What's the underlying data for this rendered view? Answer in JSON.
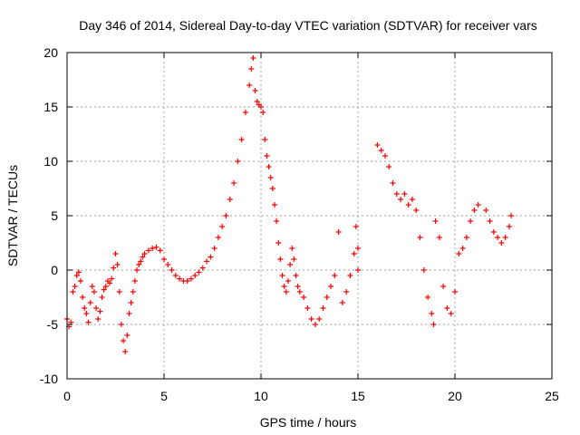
{
  "chart_data": {
    "type": "scatter",
    "title": "Day 346 of 2014, Sidereal Day-to-day VTEC variation (SDTVAR) for receiver vars",
    "xlabel": "GPS time / hours",
    "ylabel": "SDTVAR / TECUs",
    "xlim": [
      0,
      25
    ],
    "ylim": [
      -10,
      20
    ],
    "x_ticks": [
      "0",
      "5",
      "10",
      "15",
      "20",
      "25"
    ],
    "y_ticks": [
      "-10",
      "-5",
      "0",
      "5",
      "10",
      "15",
      "20"
    ],
    "grid": true,
    "marker": "plus",
    "color": "#ff0000",
    "series": [
      {
        "name": "vars",
        "points": [
          [
            0.0,
            -4.5
          ],
          [
            0.1,
            -5.2
          ],
          [
            0.2,
            -4.8
          ],
          [
            0.3,
            -2.0
          ],
          [
            0.4,
            -1.5
          ],
          [
            0.5,
            -0.5
          ],
          [
            0.6,
            -0.2
          ],
          [
            0.7,
            -1.0
          ],
          [
            0.8,
            -2.5
          ],
          [
            0.9,
            -3.5
          ],
          [
            1.0,
            -4.0
          ],
          [
            1.1,
            -4.8
          ],
          [
            1.2,
            -3.0
          ],
          [
            1.3,
            -1.5
          ],
          [
            1.4,
            -2.0
          ],
          [
            1.5,
            -3.5
          ],
          [
            1.6,
            -4.5
          ],
          [
            1.7,
            -3.8
          ],
          [
            1.8,
            -2.5
          ],
          [
            1.9,
            -1.8
          ],
          [
            2.0,
            -1.5
          ],
          [
            2.1,
            -1.0
          ],
          [
            2.2,
            -1.2
          ],
          [
            2.3,
            -0.8
          ],
          [
            2.4,
            0.2
          ],
          [
            2.5,
            1.5
          ],
          [
            2.6,
            0.5
          ],
          [
            2.7,
            -2.0
          ],
          [
            2.8,
            -5.0
          ],
          [
            2.9,
            -6.5
          ],
          [
            3.0,
            -7.5
          ],
          [
            3.1,
            -6.0
          ],
          [
            3.2,
            -4.0
          ],
          [
            3.3,
            -3.0
          ],
          [
            3.4,
            -2.0
          ],
          [
            3.5,
            -1.0
          ],
          [
            3.6,
            0.0
          ],
          [
            3.7,
            0.5
          ],
          [
            3.8,
            0.8
          ],
          [
            3.9,
            1.2
          ],
          [
            4.0,
            1.5
          ],
          [
            4.2,
            1.8
          ],
          [
            4.4,
            2.0
          ],
          [
            4.6,
            2.1
          ],
          [
            4.8,
            1.8
          ],
          [
            5.0,
            1.0
          ],
          [
            5.2,
            0.5
          ],
          [
            5.4,
            0.0
          ],
          [
            5.6,
            -0.5
          ],
          [
            5.8,
            -0.8
          ],
          [
            6.0,
            -1.0
          ],
          [
            6.2,
            -1.0
          ],
          [
            6.4,
            -0.8
          ],
          [
            6.6,
            -0.5
          ],
          [
            6.8,
            -0.2
          ],
          [
            7.0,
            0.2
          ],
          [
            7.2,
            0.8
          ],
          [
            7.4,
            1.2
          ],
          [
            7.6,
            2.0
          ],
          [
            7.8,
            3.0
          ],
          [
            8.0,
            4.0
          ],
          [
            8.2,
            5.0
          ],
          [
            8.4,
            6.5
          ],
          [
            8.6,
            8.0
          ],
          [
            8.8,
            10.0
          ],
          [
            9.0,
            12.0
          ],
          [
            9.2,
            14.5
          ],
          [
            9.4,
            17.0
          ],
          [
            9.5,
            18.5
          ],
          [
            9.6,
            19.5
          ],
          [
            9.7,
            16.5
          ],
          [
            9.8,
            15.5
          ],
          [
            9.9,
            15.2
          ],
          [
            10.0,
            15.0
          ],
          [
            10.1,
            14.5
          ],
          [
            10.2,
            12.0
          ],
          [
            10.3,
            10.5
          ],
          [
            10.4,
            9.5
          ],
          [
            10.5,
            8.5
          ],
          [
            10.6,
            7.5
          ],
          [
            10.7,
            6.0
          ],
          [
            10.8,
            4.5
          ],
          [
            10.9,
            2.5
          ],
          [
            11.0,
            1.0
          ],
          [
            11.1,
            -0.5
          ],
          [
            11.2,
            -1.5
          ],
          [
            11.3,
            -2.0
          ],
          [
            11.4,
            -1.0
          ],
          [
            11.5,
            0.5
          ],
          [
            11.6,
            2.0
          ],
          [
            11.7,
            1.0
          ],
          [
            11.8,
            -0.5
          ],
          [
            11.9,
            -1.5
          ],
          [
            12.0,
            -2.0
          ],
          [
            12.2,
            -2.5
          ],
          [
            12.4,
            -3.5
          ],
          [
            12.6,
            -4.5
          ],
          [
            12.8,
            -5.0
          ],
          [
            13.0,
            -4.5
          ],
          [
            13.2,
            -3.5
          ],
          [
            13.4,
            -2.5
          ],
          [
            13.6,
            -1.5
          ],
          [
            13.8,
            -0.5
          ],
          [
            14.0,
            3.5
          ],
          [
            14.2,
            -3.0
          ],
          [
            14.4,
            -2.0
          ],
          [
            14.6,
            -0.5
          ],
          [
            14.8,
            1.5
          ],
          [
            14.9,
            4.0
          ],
          [
            15.0,
            2.0
          ],
          [
            15.0,
            0.0
          ],
          [
            16.0,
            11.5
          ],
          [
            16.2,
            11.0
          ],
          [
            16.4,
            10.5
          ],
          [
            16.6,
            9.5
          ],
          [
            16.8,
            8.0
          ],
          [
            17.0,
            7.0
          ],
          [
            17.2,
            6.5
          ],
          [
            17.4,
            7.0
          ],
          [
            17.6,
            6.0
          ],
          [
            17.8,
            6.5
          ],
          [
            18.0,
            5.5
          ],
          [
            18.2,
            3.0
          ],
          [
            18.4,
            0.0
          ],
          [
            18.6,
            -2.5
          ],
          [
            18.8,
            -4.0
          ],
          [
            18.9,
            -5.0
          ],
          [
            19.0,
            4.5
          ],
          [
            19.2,
            3.0
          ],
          [
            19.4,
            -1.5
          ],
          [
            19.6,
            -3.5
          ],
          [
            19.8,
            -4.0
          ],
          [
            20.0,
            -2.0
          ],
          [
            20.2,
            1.5
          ],
          [
            20.4,
            2.0
          ],
          [
            20.6,
            3.0
          ],
          [
            20.8,
            4.5
          ],
          [
            21.0,
            5.5
          ],
          [
            21.2,
            6.0
          ],
          [
            21.6,
            5.5
          ],
          [
            21.8,
            4.5
          ],
          [
            22.0,
            3.5
          ],
          [
            22.2,
            3.0
          ],
          [
            22.4,
            2.5
          ],
          [
            22.6,
            3.0
          ],
          [
            22.8,
            4.0
          ],
          [
            22.9,
            5.0
          ]
        ]
      }
    ]
  }
}
